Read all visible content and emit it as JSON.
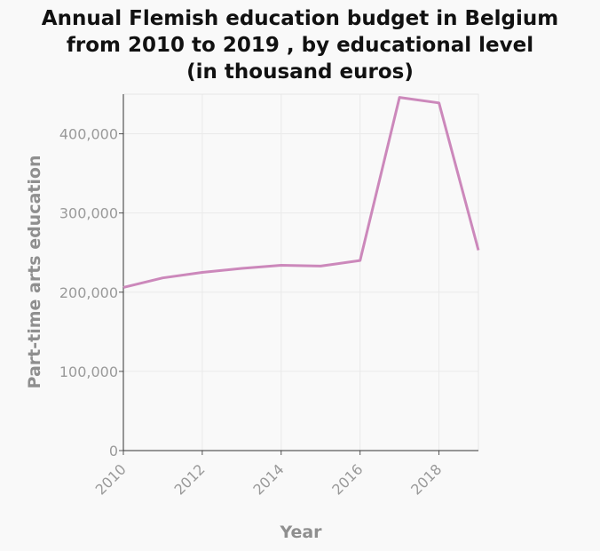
{
  "chart_data": {
    "type": "line",
    "title_lines": [
      "Annual Flemish education budget in Belgium",
      "from 2010 to 2019 , by educational level",
      "(in thousand euros)"
    ],
    "xlabel": "Year",
    "ylabel": "Part-time arts education",
    "xlim": [
      2010,
      2019
    ],
    "ylim": [
      0,
      450000
    ],
    "x_ticks": [
      2010,
      2012,
      2014,
      2016,
      2018
    ],
    "y_ticks": [
      0,
      100000,
      200000,
      300000,
      400000
    ],
    "y_tick_labels": [
      "0",
      "100,000",
      "200,000",
      "300,000",
      "400,000"
    ],
    "grid": true,
    "line_color": "#cc88bb",
    "series": [
      {
        "x": [
          2010,
          2011,
          2012,
          2013,
          2014,
          2015,
          2016,
          2017,
          2018,
          2019
        ],
        "values": [
          206000,
          218000,
          225000,
          230000,
          234000,
          233000,
          240000,
          446000,
          439000,
          253000
        ]
      }
    ]
  }
}
